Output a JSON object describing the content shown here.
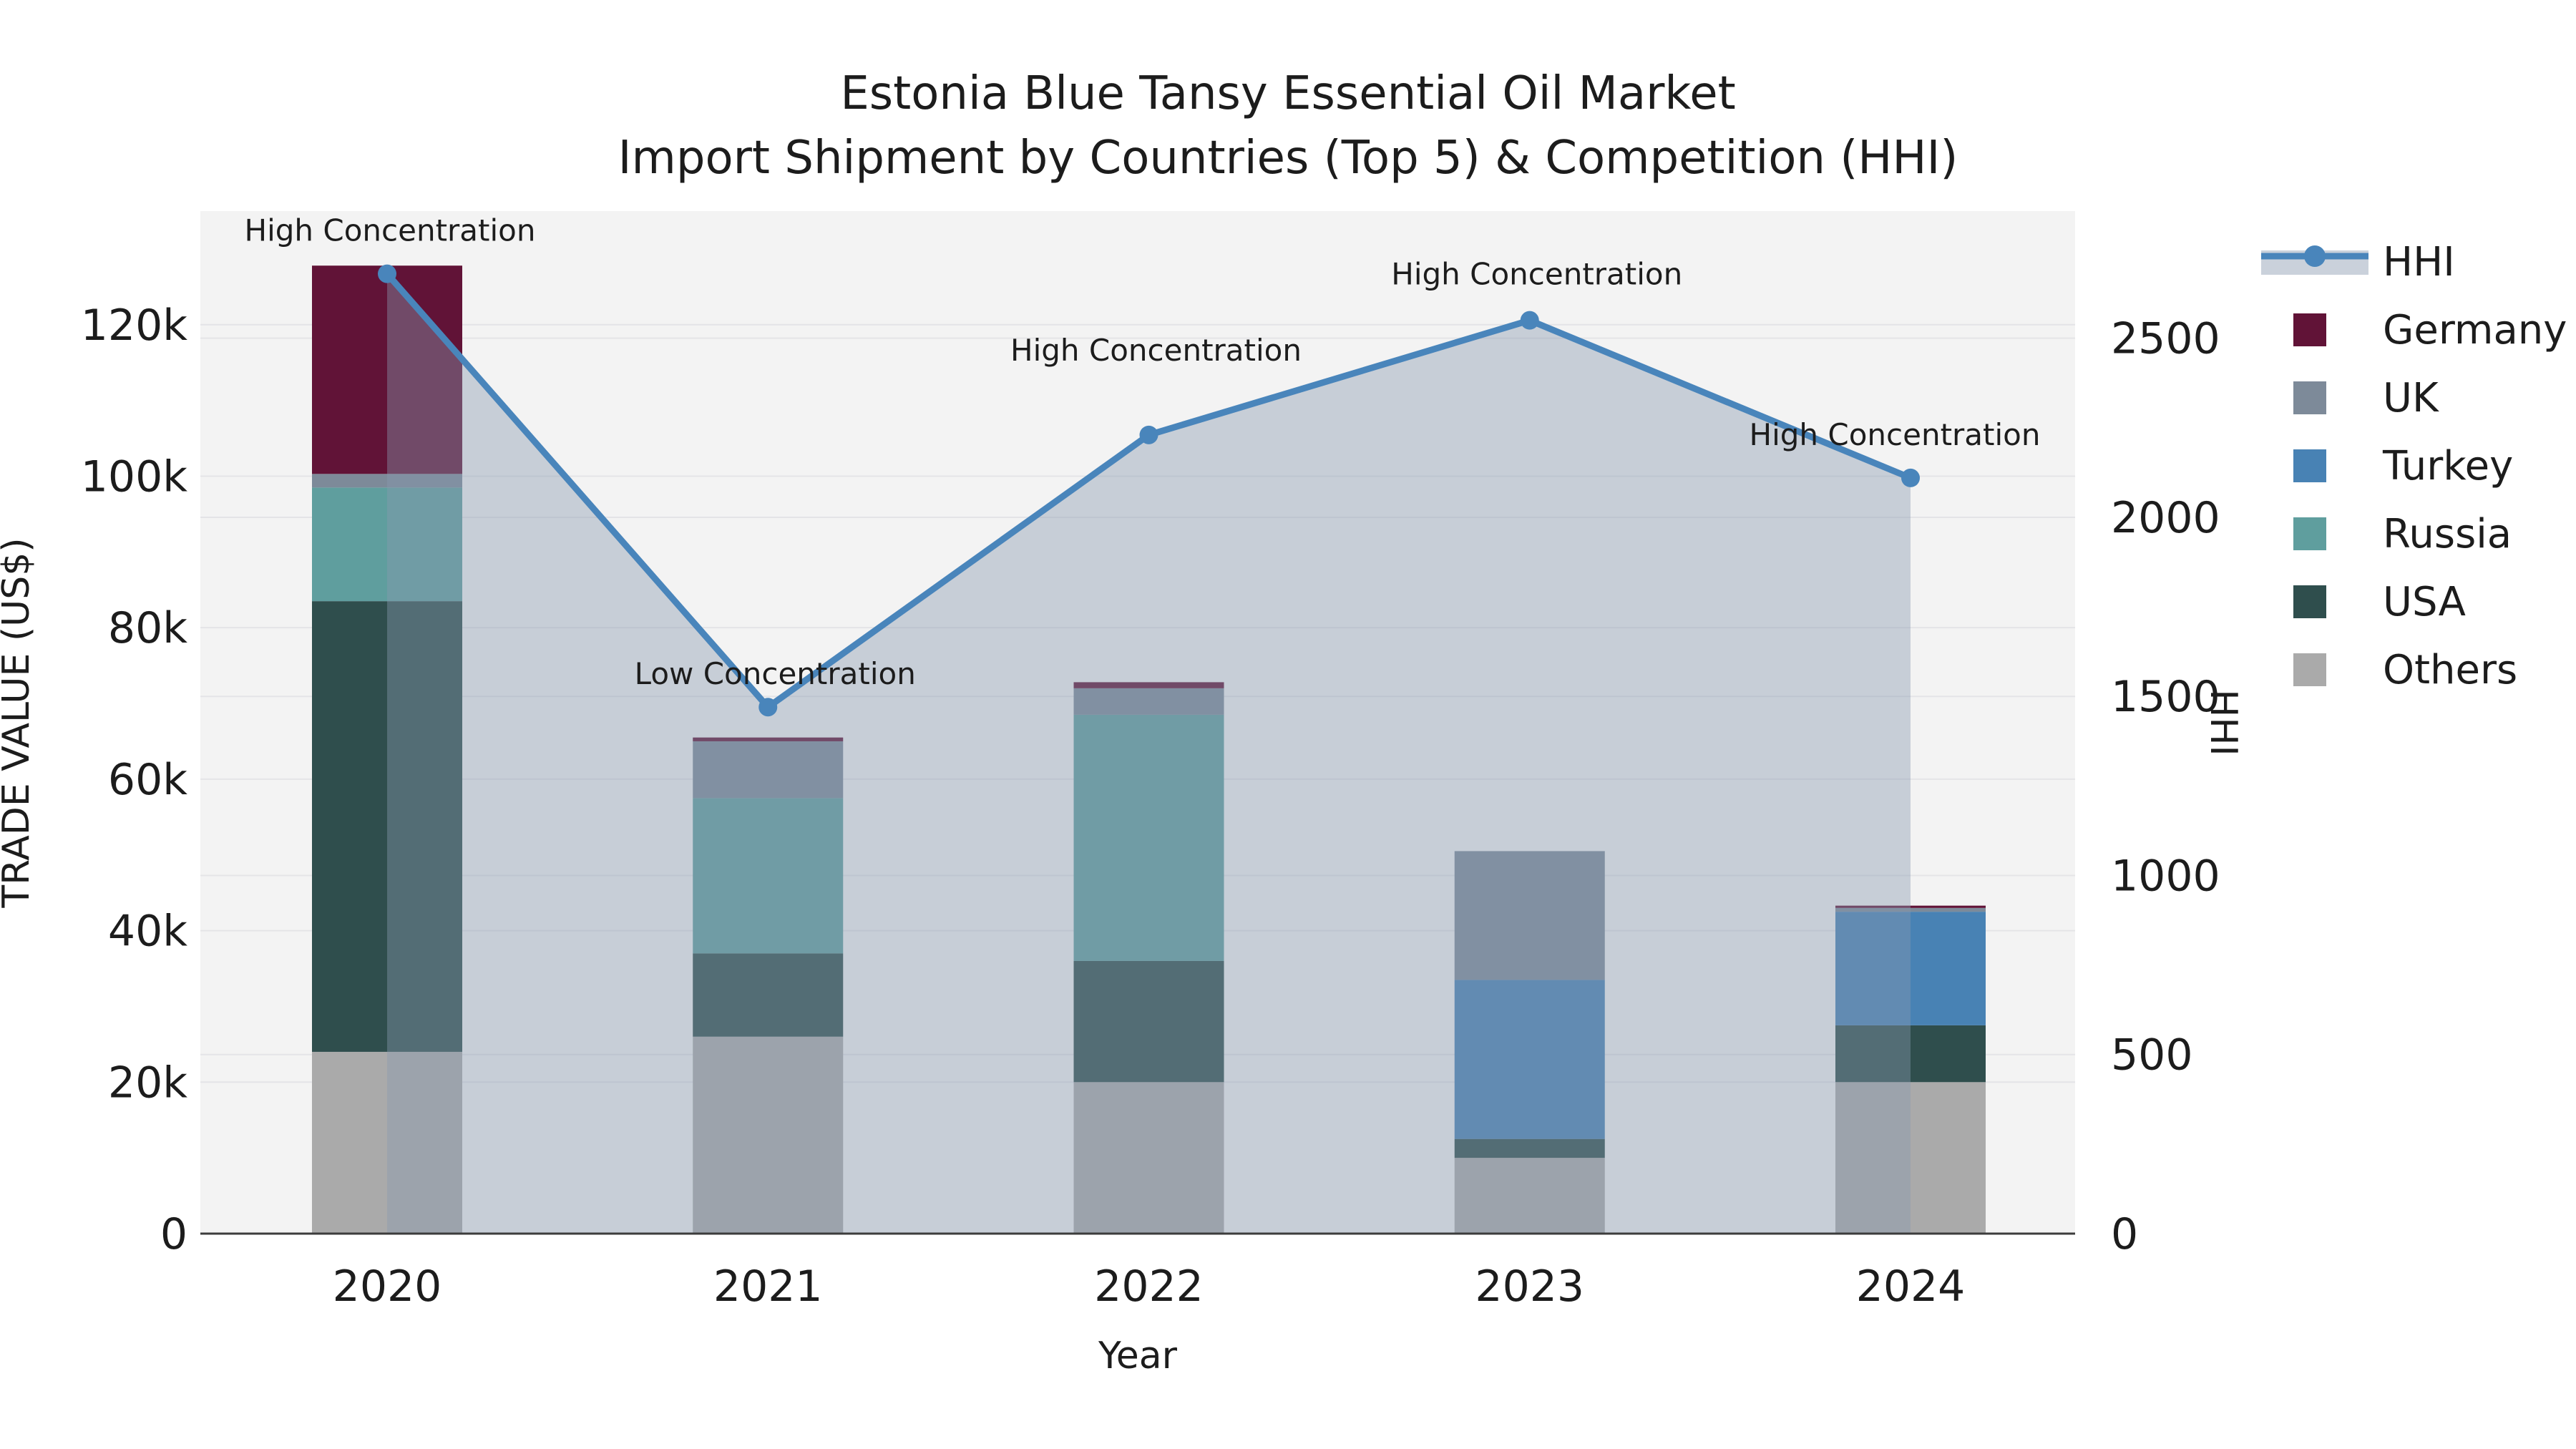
{
  "title": {
    "line1": "Estonia Blue Tansy Essential Oil Market",
    "line2": "Import Shipment by Countries (Top 5) & Competition (HHI)"
  },
  "chart_data": {
    "type": "bar",
    "subtype": "stacked-bars-with-line-area",
    "categories": [
      "2020",
      "2021",
      "2022",
      "2023",
      "2024"
    ],
    "series": [
      {
        "name": "Others",
        "color": "#AAAAAA",
        "values": [
          24000,
          26000,
          20000,
          10000,
          20000
        ]
      },
      {
        "name": "USA",
        "color": "#2F4E4D",
        "values": [
          59500,
          11000,
          16000,
          2500,
          7500
        ]
      },
      {
        "name": "Russia",
        "color": "#5F9E9E",
        "values": [
          15000,
          20500,
          32500,
          0,
          0
        ]
      },
      {
        "name": "Turkey",
        "color": "#4882B4",
        "values": [
          0,
          0,
          0,
          21000,
          15000
        ]
      },
      {
        "name": "UK",
        "color": "#7D8A99",
        "values": [
          1800,
          7500,
          3500,
          17000,
          500
        ]
      },
      {
        "name": "Germany",
        "color": "#611337",
        "values": [
          27500,
          500,
          800,
          0,
          300
        ]
      }
    ],
    "line_series": {
      "name": "HHI",
      "color": "#4985BB",
      "area_color": "rgba(137,152,176,0.41)",
      "values": [
        2680,
        1470,
        2230,
        2550,
        2110
      ]
    },
    "annotations": [
      {
        "text": "High Concentration"
      },
      {
        "text": "Low Concentration"
      },
      {
        "text": "High Concentration"
      },
      {
        "text": "High Concentration"
      },
      {
        "text": "High Concentration"
      }
    ],
    "xlabel": "Year",
    "ylabel_left": "TRADE VALUE (US$)",
    "ylabel_right": "HHI",
    "y_left": {
      "max": 135000,
      "ticks": [
        0,
        20000,
        40000,
        60000,
        80000,
        100000,
        120000
      ],
      "labels": [
        "0",
        "20k",
        "40k",
        "60k",
        "80k",
        "100k",
        "120k"
      ]
    },
    "y_right": {
      "max": 2855,
      "ticks": [
        0,
        500,
        1000,
        1500,
        2000,
        2500
      ],
      "labels": [
        "0",
        "500",
        "1000",
        "1500",
        "2000",
        "2500"
      ]
    },
    "grid": true,
    "legend_position": "right",
    "legend": [
      {
        "label": "HHI",
        "type": "line",
        "color": "#4985BB"
      },
      {
        "label": "Germany",
        "type": "box",
        "color": "#611337"
      },
      {
        "label": "UK",
        "type": "box",
        "color": "#7D8A99"
      },
      {
        "label": "Turkey",
        "type": "box",
        "color": "#4882B4"
      },
      {
        "label": "Russia",
        "type": "box",
        "color": "#5F9E9E"
      },
      {
        "label": "USA",
        "type": "box",
        "color": "#2F4E4D"
      },
      {
        "label": "Others",
        "type": "box",
        "color": "#AAAAAA"
      }
    ],
    "colors": {
      "plot_bg": "#F3F3F3",
      "figure_bg": "#FFFFFF",
      "gridline": "#E4E4E7",
      "axis_line": "#3C3C3C",
      "text": "#1C1C1C"
    }
  }
}
